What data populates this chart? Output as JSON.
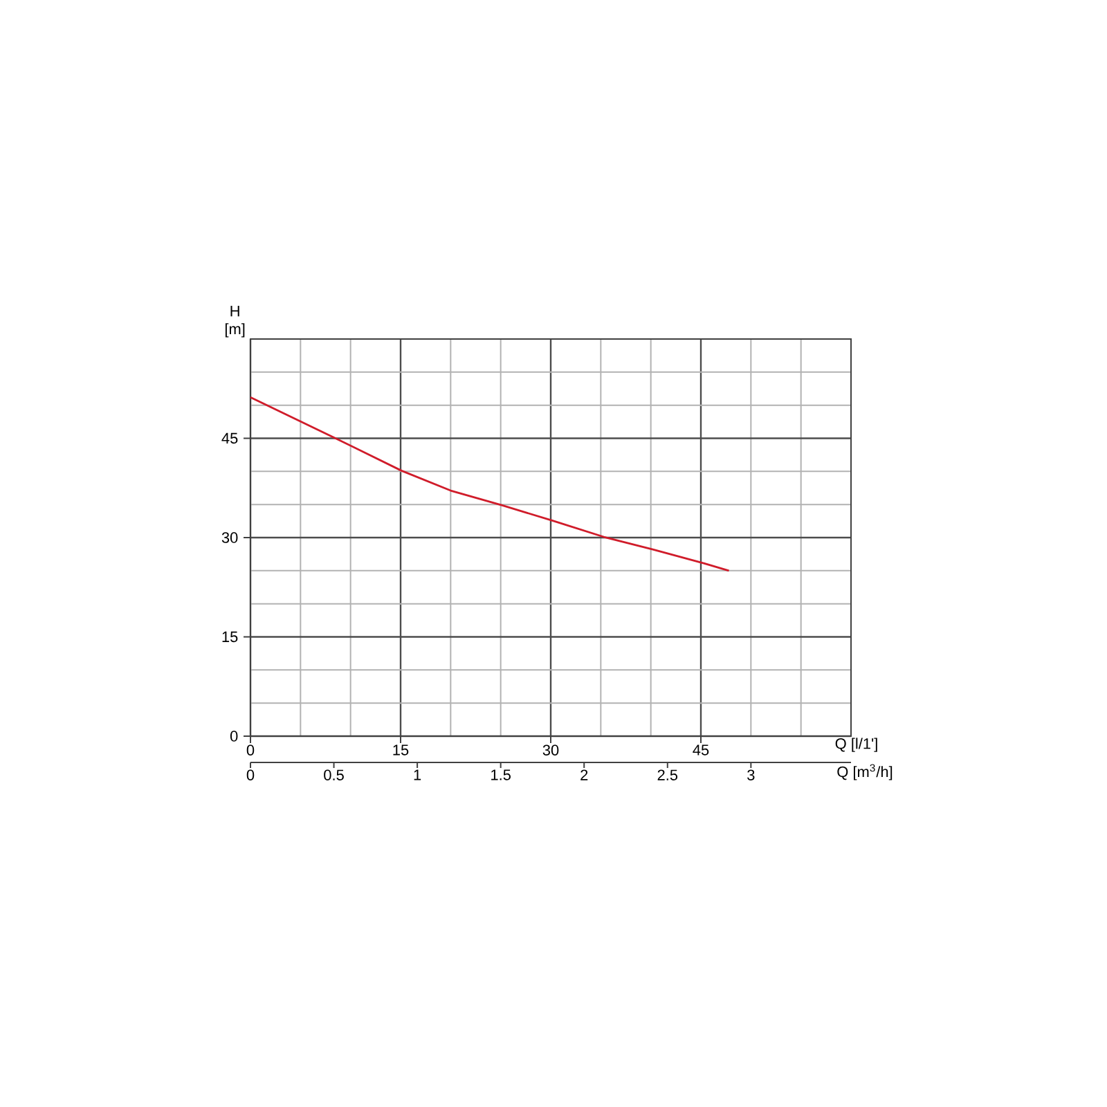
{
  "chart_data": {
    "type": "line",
    "xlabel": "Q [l/1']",
    "x2label": "Q [m$^{3}$/h]",
    "ylabel": "H [m]",
    "xlim": [
      0,
      60
    ],
    "ylim": [
      0,
      60
    ],
    "x2lim": [
      0,
      3.6
    ],
    "xticks": [
      0,
      {
        "value": 5,
        "label": null
      },
      {
        "value": 10,
        "label": null
      },
      15,
      {
        "value": 20,
        "label": null
      },
      {
        "value": 25,
        "label": null
      },
      30,
      {
        "value": 35,
        "label": null
      },
      {
        "value": 40,
        "label": null
      },
      45,
      {
        "value": 50,
        "label": null
      },
      {
        "value": 55,
        "label": null
      },
      {
        "value": 60,
        "label": null
      }
    ],
    "yticks": [
      0,
      {
        "value": 5,
        "label": null
      },
      {
        "value": 10,
        "label": null
      },
      15,
      {
        "value": 20,
        "label": null
      },
      {
        "value": 25,
        "label": null
      },
      30,
      {
        "value": 35,
        "label": null
      },
      {
        "value": 40,
        "label": null
      },
      45,
      {
        "value": 50,
        "label": null
      },
      {
        "value": 55,
        "label": null
      },
      {
        "value": 60,
        "label": null
      }
    ],
    "x2ticks": [
      0,
      0.5,
      1,
      1.5,
      2,
      2.5,
      3
    ],
    "grid": true,
    "series": [
      {
        "color": "#d01c2a",
        "x": [
          0,
          8.5,
          15.1,
          20,
          25.1,
          30.1,
          35.3,
          40.2,
          45.1,
          47.8
        ],
        "values": [
          51.2,
          45.0,
          40.1,
          37.1,
          34.9,
          32.6,
          30.1,
          28.2,
          26.2,
          25.0
        ]
      }
    ]
  }
}
